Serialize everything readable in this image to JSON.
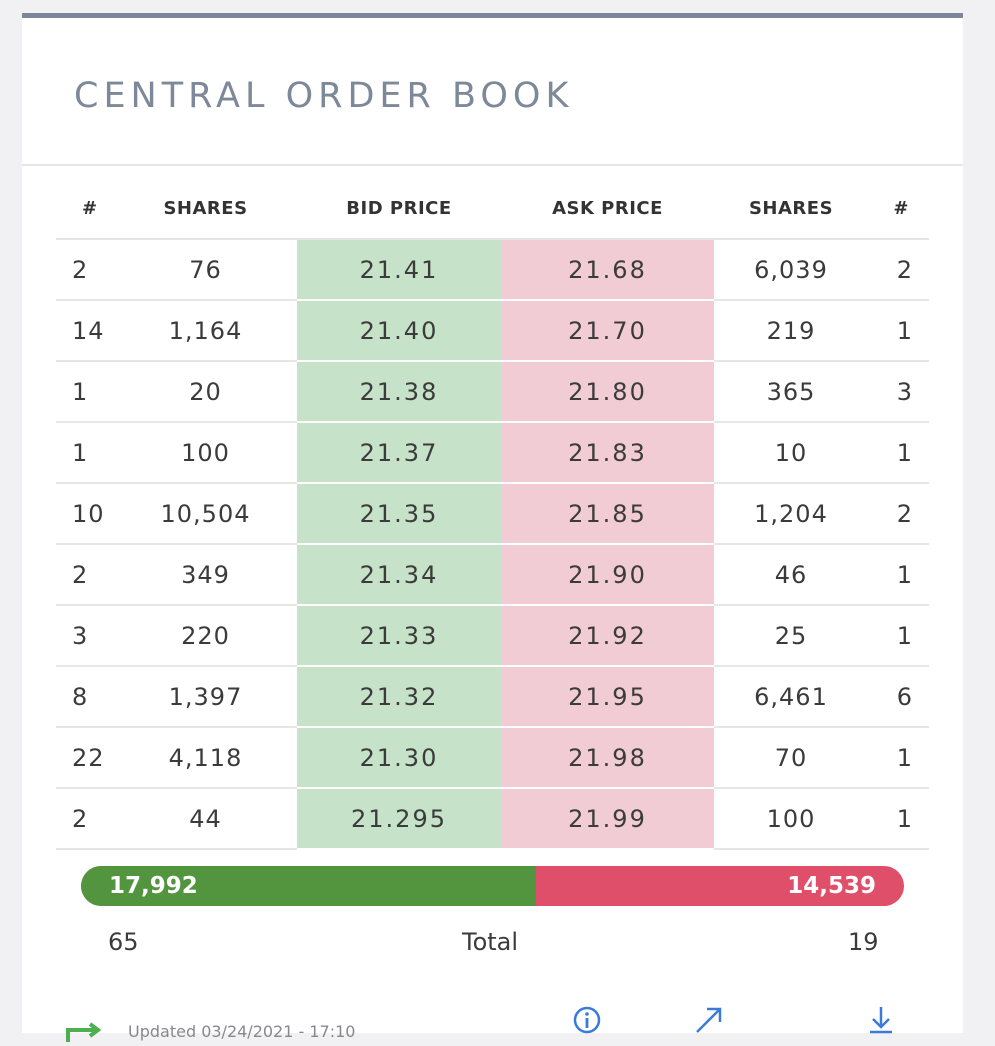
{
  "title": "CENTRAL ORDER BOOK",
  "columns": {
    "bid_count": "#",
    "bid_shares": "SHARES",
    "bid_price": "BID PRICE",
    "ask_price": "ASK PRICE",
    "ask_shares": "SHARES",
    "ask_count": "#"
  },
  "rows": [
    {
      "bid_count": "2",
      "bid_shares": "76",
      "bid_price": "21.41",
      "ask_price": "21.68",
      "ask_shares": "6,039",
      "ask_count": "2"
    },
    {
      "bid_count": "14",
      "bid_shares": "1,164",
      "bid_price": "21.40",
      "ask_price": "21.70",
      "ask_shares": "219",
      "ask_count": "1"
    },
    {
      "bid_count": "1",
      "bid_shares": "20",
      "bid_price": "21.38",
      "ask_price": "21.80",
      "ask_shares": "365",
      "ask_count": "3"
    },
    {
      "bid_count": "1",
      "bid_shares": "100",
      "bid_price": "21.37",
      "ask_price": "21.83",
      "ask_shares": "10",
      "ask_count": "1"
    },
    {
      "bid_count": "10",
      "bid_shares": "10,504",
      "bid_price": "21.35",
      "ask_price": "21.85",
      "ask_shares": "1,204",
      "ask_count": "2"
    },
    {
      "bid_count": "2",
      "bid_shares": "349",
      "bid_price": "21.34",
      "ask_price": "21.90",
      "ask_shares": "46",
      "ask_count": "1"
    },
    {
      "bid_count": "3",
      "bid_shares": "220",
      "bid_price": "21.33",
      "ask_price": "21.92",
      "ask_shares": "25",
      "ask_count": "1"
    },
    {
      "bid_count": "8",
      "bid_shares": "1,397",
      "bid_price": "21.32",
      "ask_price": "21.95",
      "ask_shares": "6,461",
      "ask_count": "6"
    },
    {
      "bid_count": "22",
      "bid_shares": "4,118",
      "bid_price": "21.30",
      "ask_price": "21.98",
      "ask_shares": "70",
      "ask_count": "1"
    },
    {
      "bid_count": "2",
      "bid_shares": "44",
      "bid_price": "21.295",
      "ask_price": "21.99",
      "ask_shares": "100",
      "ask_count": "1"
    }
  ],
  "summary": {
    "bid_shares_total": "17,992",
    "ask_shares_total": "14,539",
    "bid_fraction": 0.553,
    "bid_orders_total": "65",
    "total_label": "Total",
    "ask_orders_total": "19"
  },
  "footer": {
    "updated_text": "Updated 03/24/2021 - 17:10",
    "icons": [
      "refresh-icon",
      "info-icon",
      "expand-icon",
      "download-icon"
    ]
  },
  "colors": {
    "accent": "#7d8799",
    "bid_fill": "#c6e2c8",
    "ask_fill": "#f1ccd4",
    "bid_bar": "#53943f",
    "ask_bar": "#df4f6a",
    "icon_blue": "#3b7bd8",
    "refresh_green": "#4caf50"
  }
}
